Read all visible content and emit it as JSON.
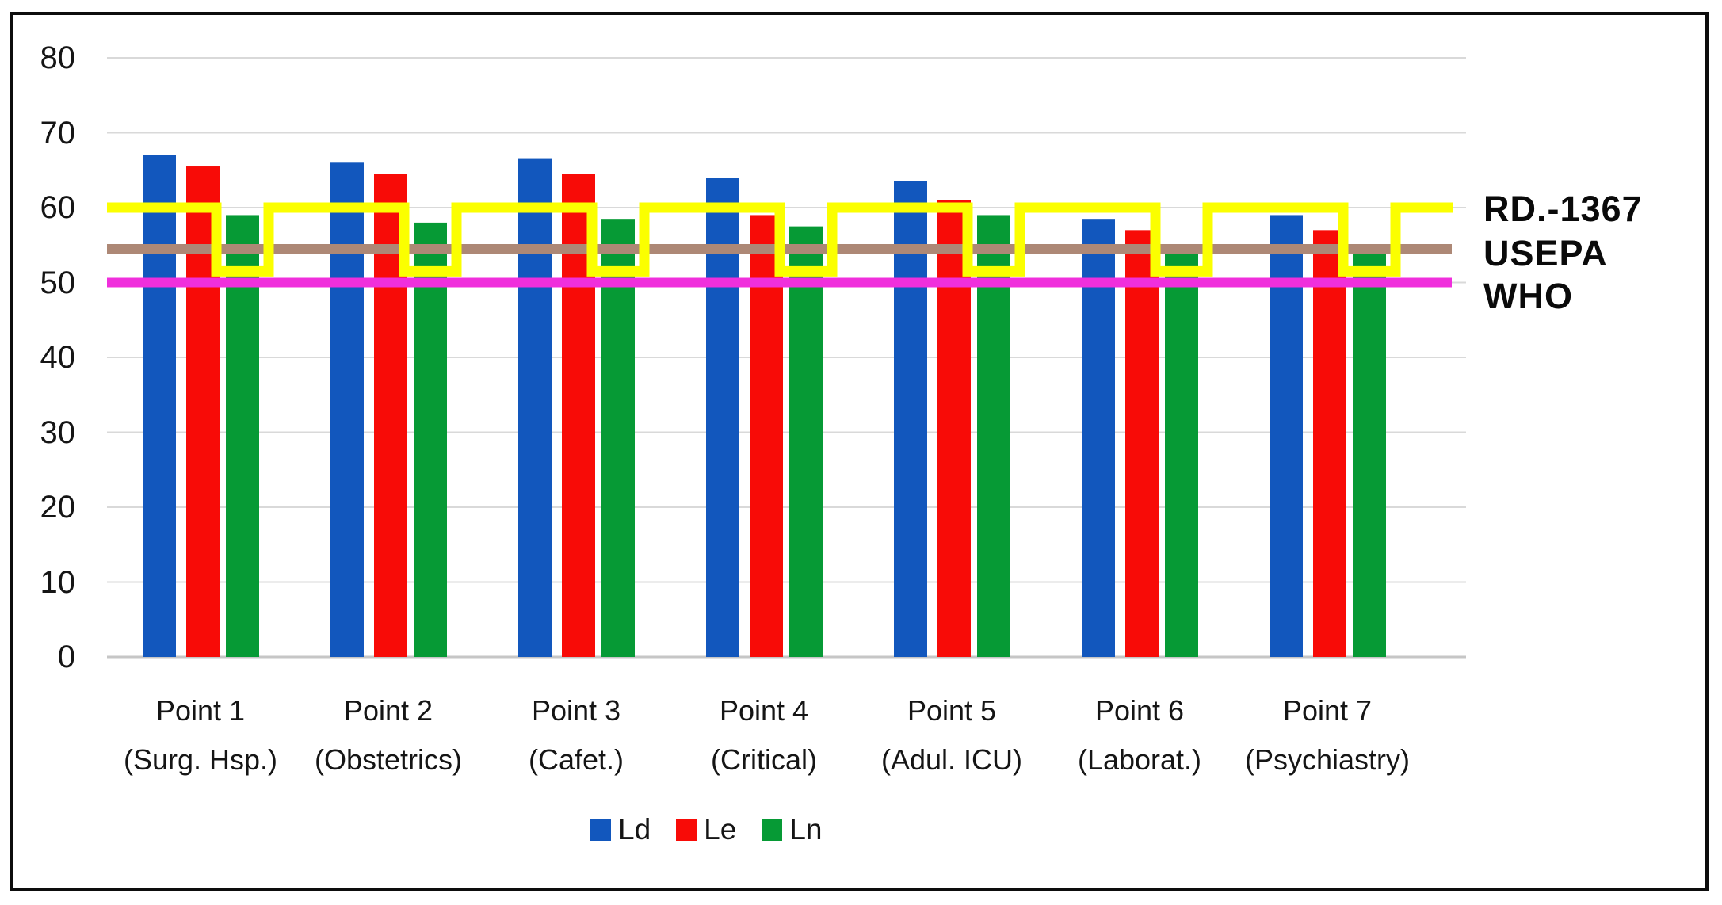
{
  "chart_data": {
    "type": "bar",
    "title": "",
    "xlabel": "",
    "ylabel": "",
    "ylim": [
      0,
      80
    ],
    "ytick_step": 10,
    "yticks": [
      0,
      10,
      20,
      30,
      40,
      50,
      60,
      70,
      80
    ],
    "grid": true,
    "legend_position": "bottom",
    "categories": [
      "Point 1",
      "Point 2",
      "Point 3",
      "Point 4",
      "Point 5",
      "Point 6",
      "Point 7"
    ],
    "category_sublabels": [
      "(Surg. Hsp.)",
      "(Obstetrics)",
      "(Cafet.)",
      "(Critical)",
      "(Adul. ICU)",
      "(Laborat.)",
      "(Psychiastry)"
    ],
    "series": [
      {
        "name": "Ld",
        "color": "#1257BD",
        "values": [
          67,
          66,
          66.5,
          64,
          63.5,
          58.5,
          59
        ]
      },
      {
        "name": "Le",
        "color": "#F80B07",
        "values": [
          65.5,
          64.5,
          64.5,
          59,
          61,
          57,
          57
        ]
      },
      {
        "name": "Ln",
        "color": "#069A35",
        "values": [
          59,
          58,
          58.5,
          57.5,
          59,
          54,
          54.5
        ]
      }
    ],
    "ref_lines": [
      {
        "label": "RD.-1367",
        "color": "#FBFF00",
        "type": "stepped",
        "high": 60,
        "low": 51.5,
        "note": "steps down to the low value over each Ln bar"
      },
      {
        "label": "USEPA",
        "color": "#AD8876",
        "type": "straight",
        "value": 54.5
      },
      {
        "label": "WHO",
        "color": "#F02FDC",
        "type": "straight",
        "value": 50
      }
    ]
  }
}
